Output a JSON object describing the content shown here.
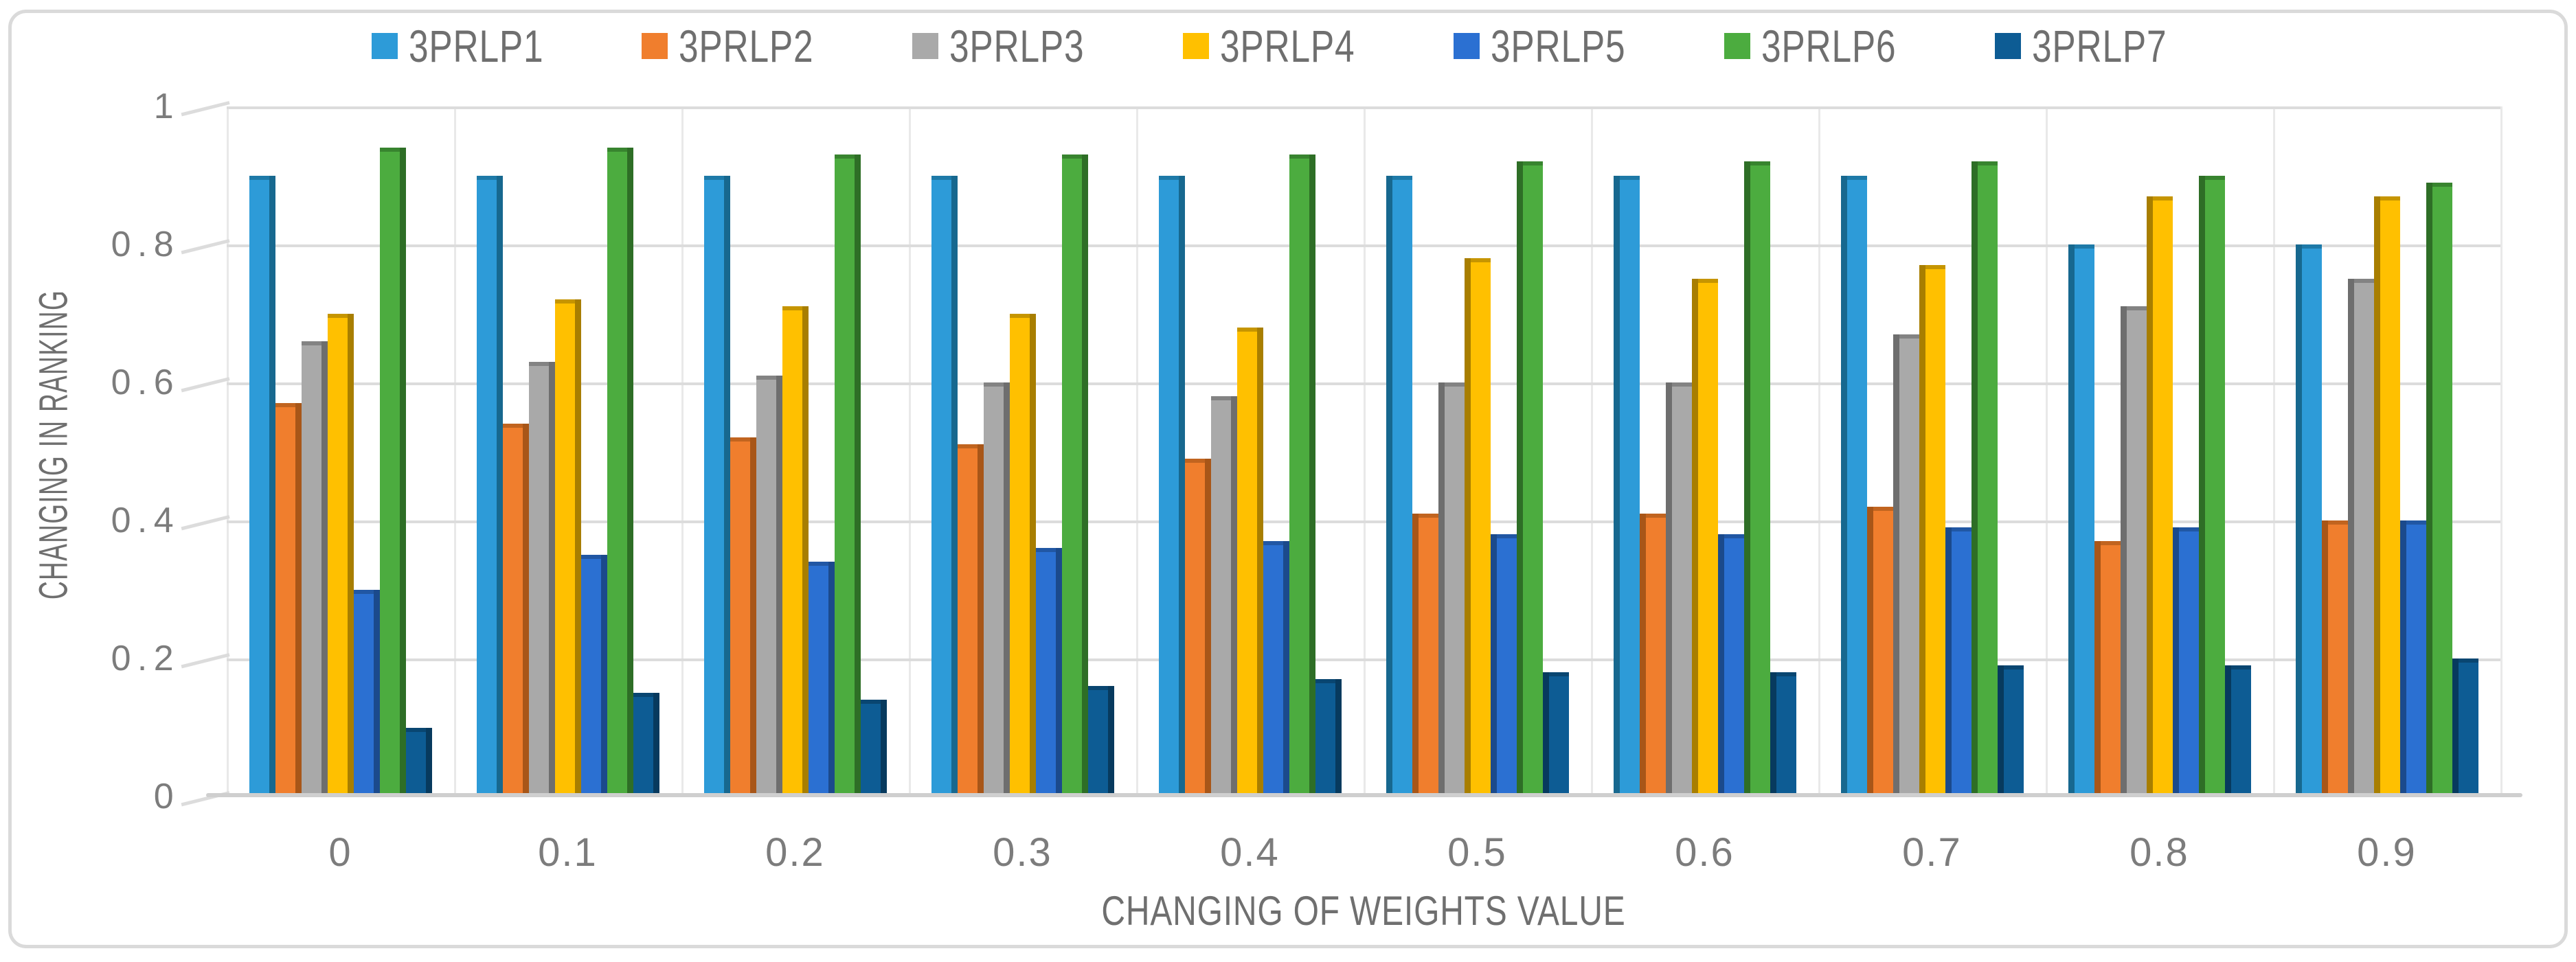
{
  "figure": {
    "border_color": "#dadada",
    "background": "#ffffff",
    "text_color": "#6f6f6f"
  },
  "chart_data": {
    "type": "bar",
    "title": "",
    "xlabel": "CHANGING OF WEIGHTS VALUE",
    "ylabel": "CHANGING IN RANKING",
    "ylim": [
      0,
      1
    ],
    "ytick_step": 0.2,
    "yticks_top_to_bottom": [
      "1",
      "0.8",
      "0.6",
      "0.4",
      "0.2",
      "0"
    ],
    "grid": true,
    "legend_position": "top-center",
    "categories": [
      "0",
      "0.1",
      "0.2",
      "0.3",
      "0.4",
      "0.5",
      "0.6",
      "0.7",
      "0.8",
      "0.9"
    ],
    "series": [
      {
        "name": "3PRLP1",
        "color": "#2d9bd8",
        "color_dark": "#17688f",
        "values": [
          0.9,
          0.9,
          0.9,
          0.9,
          0.9,
          0.9,
          0.9,
          0.9,
          0.8,
          0.8
        ]
      },
      {
        "name": "3PRLP2",
        "color": "#f07e2d",
        "color_dark": "#a85618",
        "values": [
          0.57,
          0.54,
          0.52,
          0.51,
          0.49,
          0.41,
          0.41,
          0.42,
          0.37,
          0.4
        ]
      },
      {
        "name": "3PRLP3",
        "color": "#a9a9a9",
        "color_dark": "#6e6e6e",
        "values": [
          0.66,
          0.63,
          0.61,
          0.6,
          0.58,
          0.6,
          0.6,
          0.67,
          0.71,
          0.75
        ]
      },
      {
        "name": "3PRLP4",
        "color": "#ffc000",
        "color_dark": "#a87e00",
        "values": [
          0.7,
          0.72,
          0.71,
          0.7,
          0.68,
          0.78,
          0.75,
          0.77,
          0.87,
          0.87
        ]
      },
      {
        "name": "3PRLP5",
        "color": "#2b70d2",
        "color_dark": "#1b4a8c",
        "values": [
          0.3,
          0.35,
          0.34,
          0.36,
          0.37,
          0.38,
          0.38,
          0.39,
          0.39,
          0.4
        ]
      },
      {
        "name": "3PRLP6",
        "color": "#4cac3f",
        "color_dark": "#2e6e26",
        "values": [
          0.94,
          0.94,
          0.93,
          0.93,
          0.93,
          0.92,
          0.92,
          0.92,
          0.9,
          0.89
        ]
      },
      {
        "name": "3PRLP7",
        "color": "#0d5c94",
        "color_dark": "#073a5e",
        "values": [
          0.1,
          0.15,
          0.14,
          0.16,
          0.17,
          0.18,
          0.18,
          0.19,
          0.19,
          0.2
        ]
      }
    ]
  }
}
